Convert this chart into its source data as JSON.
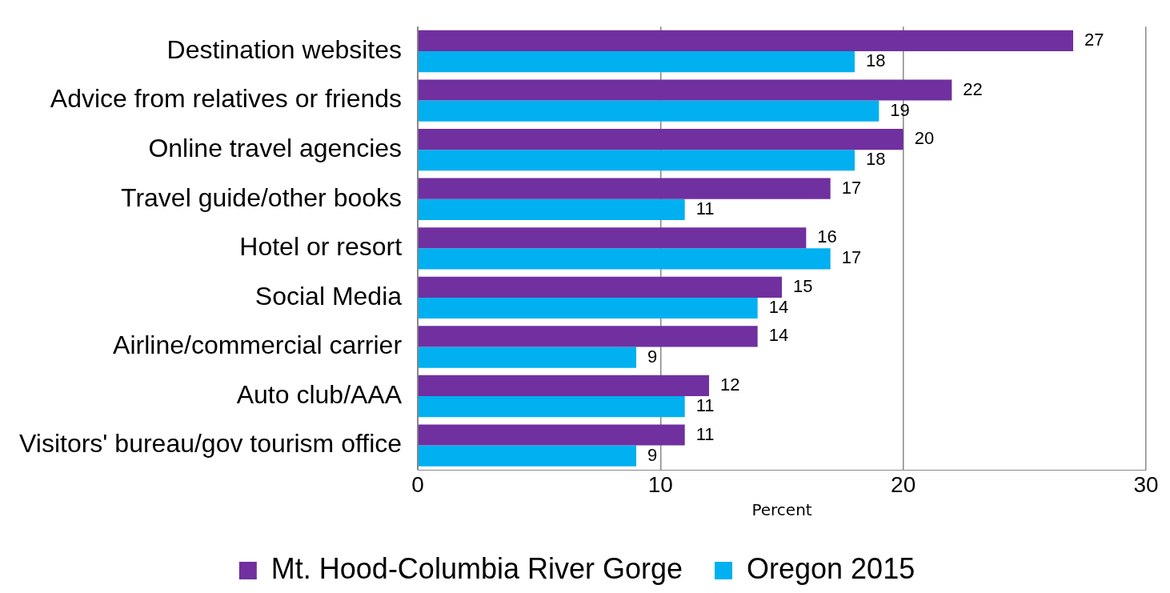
{
  "chart_data": {
    "type": "bar",
    "orientation": "horizontal",
    "xlabel": "Percent",
    "categories": [
      "Destination websites",
      "Advice from relatives or friends",
      "Online travel agencies",
      "Travel guide/other books",
      "Hotel or resort",
      "Social Media",
      "Airline/commercial carrier",
      "Auto club/AAA",
      "Visitors' bureau/gov tourism office"
    ],
    "series": [
      {
        "name": "Mt. Hood-Columbia River Gorge",
        "color": "#7030a0",
        "values": [
          27,
          22,
          20,
          17,
          16,
          15,
          14,
          12,
          11
        ]
      },
      {
        "name": "Oregon 2015",
        "color": "#00b0f0",
        "values": [
          18,
          19,
          18,
          11,
          17,
          14,
          9,
          11,
          9
        ]
      }
    ],
    "xlim": [
      0,
      30
    ],
    "xticks": [
      0,
      10,
      20,
      30
    ],
    "grid": "x",
    "legend": "bottom",
    "data_labels": true
  }
}
